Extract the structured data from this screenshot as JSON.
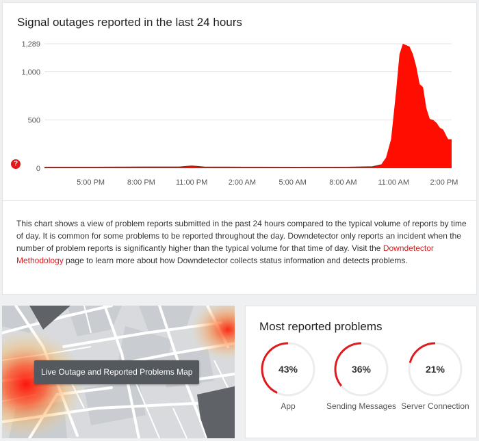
{
  "chart": {
    "title": "Signal outages reported in the last 24 hours",
    "help_icon": "?",
    "color": "#ff0d00"
  },
  "chart_data": {
    "type": "area",
    "y_ticks": [
      {
        "value": 0,
        "label": "0"
      },
      {
        "value": 500,
        "label": "500"
      },
      {
        "value": 1000,
        "label": "1,000"
      },
      {
        "value": 1289,
        "label": "1,289"
      }
    ],
    "ylim": [
      0,
      1289
    ],
    "x_ticks": [
      "5:00 PM",
      "8:00 PM",
      "11:00 PM",
      "2:00 AM",
      "5:00 AM",
      "8:00 AM",
      "11:00 AM",
      "2:00 PM"
    ],
    "x_tick_hours": [
      2.75,
      5.75,
      8.75,
      11.75,
      14.75,
      17.75,
      20.75,
      23.75
    ],
    "xlim": [
      0,
      24.2
    ],
    "grid": true,
    "series": [
      {
        "hours": [
          0,
          3.0,
          6.0,
          8.0,
          8.75,
          9.5,
          12.0,
          15.0,
          18.0,
          19.5,
          20.0,
          20.3,
          20.6,
          20.9,
          21.1,
          21.3,
          21.5,
          21.7,
          21.9,
          22.1,
          22.3,
          22.5,
          22.7,
          22.9,
          23.1,
          23.3,
          23.5,
          23.7,
          23.9,
          24.0,
          24.2
        ],
        "values": [
          10,
          10,
          11,
          11,
          22,
          11,
          10,
          9,
          10,
          14,
          35,
          110,
          300,
          800,
          1180,
          1289,
          1275,
          1260,
          1180,
          1050,
          870,
          840,
          620,
          510,
          500,
          470,
          420,
          400,
          330,
          300,
          300
        ]
      }
    ]
  },
  "description": {
    "text_before_link": "This chart shows a view of problem reports submitted in the past 24 hours compared to the typical volume of reports by time of day. It is common for some problems to be reported throughout the day. Downdetector only reports an incident when the number of problem reports is significantly higher than the typical volume for that time of day. Visit the ",
    "link_text": "Downdetector Methodology",
    "text_after_link": " page to learn more about how Downdetector collects status information and detects problems."
  },
  "map": {
    "button_label": "Live Outage and Reported Problems Map"
  },
  "problems": {
    "title": "Most reported problems",
    "accent": "#e0191c",
    "items": [
      {
        "percent_label": "43%",
        "fraction": 0.43,
        "label": "App"
      },
      {
        "percent_label": "36%",
        "fraction": 0.36,
        "label": "Sending Messages"
      },
      {
        "percent_label": "21%",
        "fraction": 0.21,
        "label": "Server Connection"
      }
    ]
  }
}
